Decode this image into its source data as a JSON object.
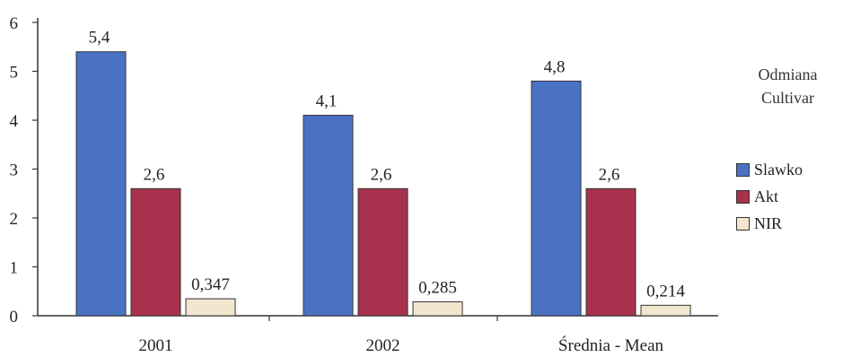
{
  "chart_data": {
    "type": "bar",
    "categories": [
      "2001",
      "2002",
      "Średnia - Mean"
    ],
    "series": [
      {
        "name": "Slawko",
        "values": [
          5.4,
          4.1,
          4.8
        ],
        "labels": [
          "5,4",
          "4,1",
          "4,8"
        ],
        "color": "#4A72C4"
      },
      {
        "name": "Akt",
        "values": [
          2.6,
          2.6,
          2.6
        ],
        "labels": [
          "2,6",
          "2,6",
          "2,6"
        ],
        "color": "#A8324E"
      },
      {
        "name": "NIR",
        "values": [
          0.347,
          0.285,
          0.214
        ],
        "labels": [
          "0,347",
          "0,285",
          "0,214"
        ],
        "color": "#F2E6CF"
      }
    ],
    "y_ticks": [
      "0",
      "1",
      "2",
      "3",
      "4",
      "5",
      "6"
    ],
    "ylim": [
      0,
      6
    ],
    "legend_title": [
      "Odmiana",
      "Cultivar"
    ],
    "legend_position": "right",
    "grid": false
  }
}
